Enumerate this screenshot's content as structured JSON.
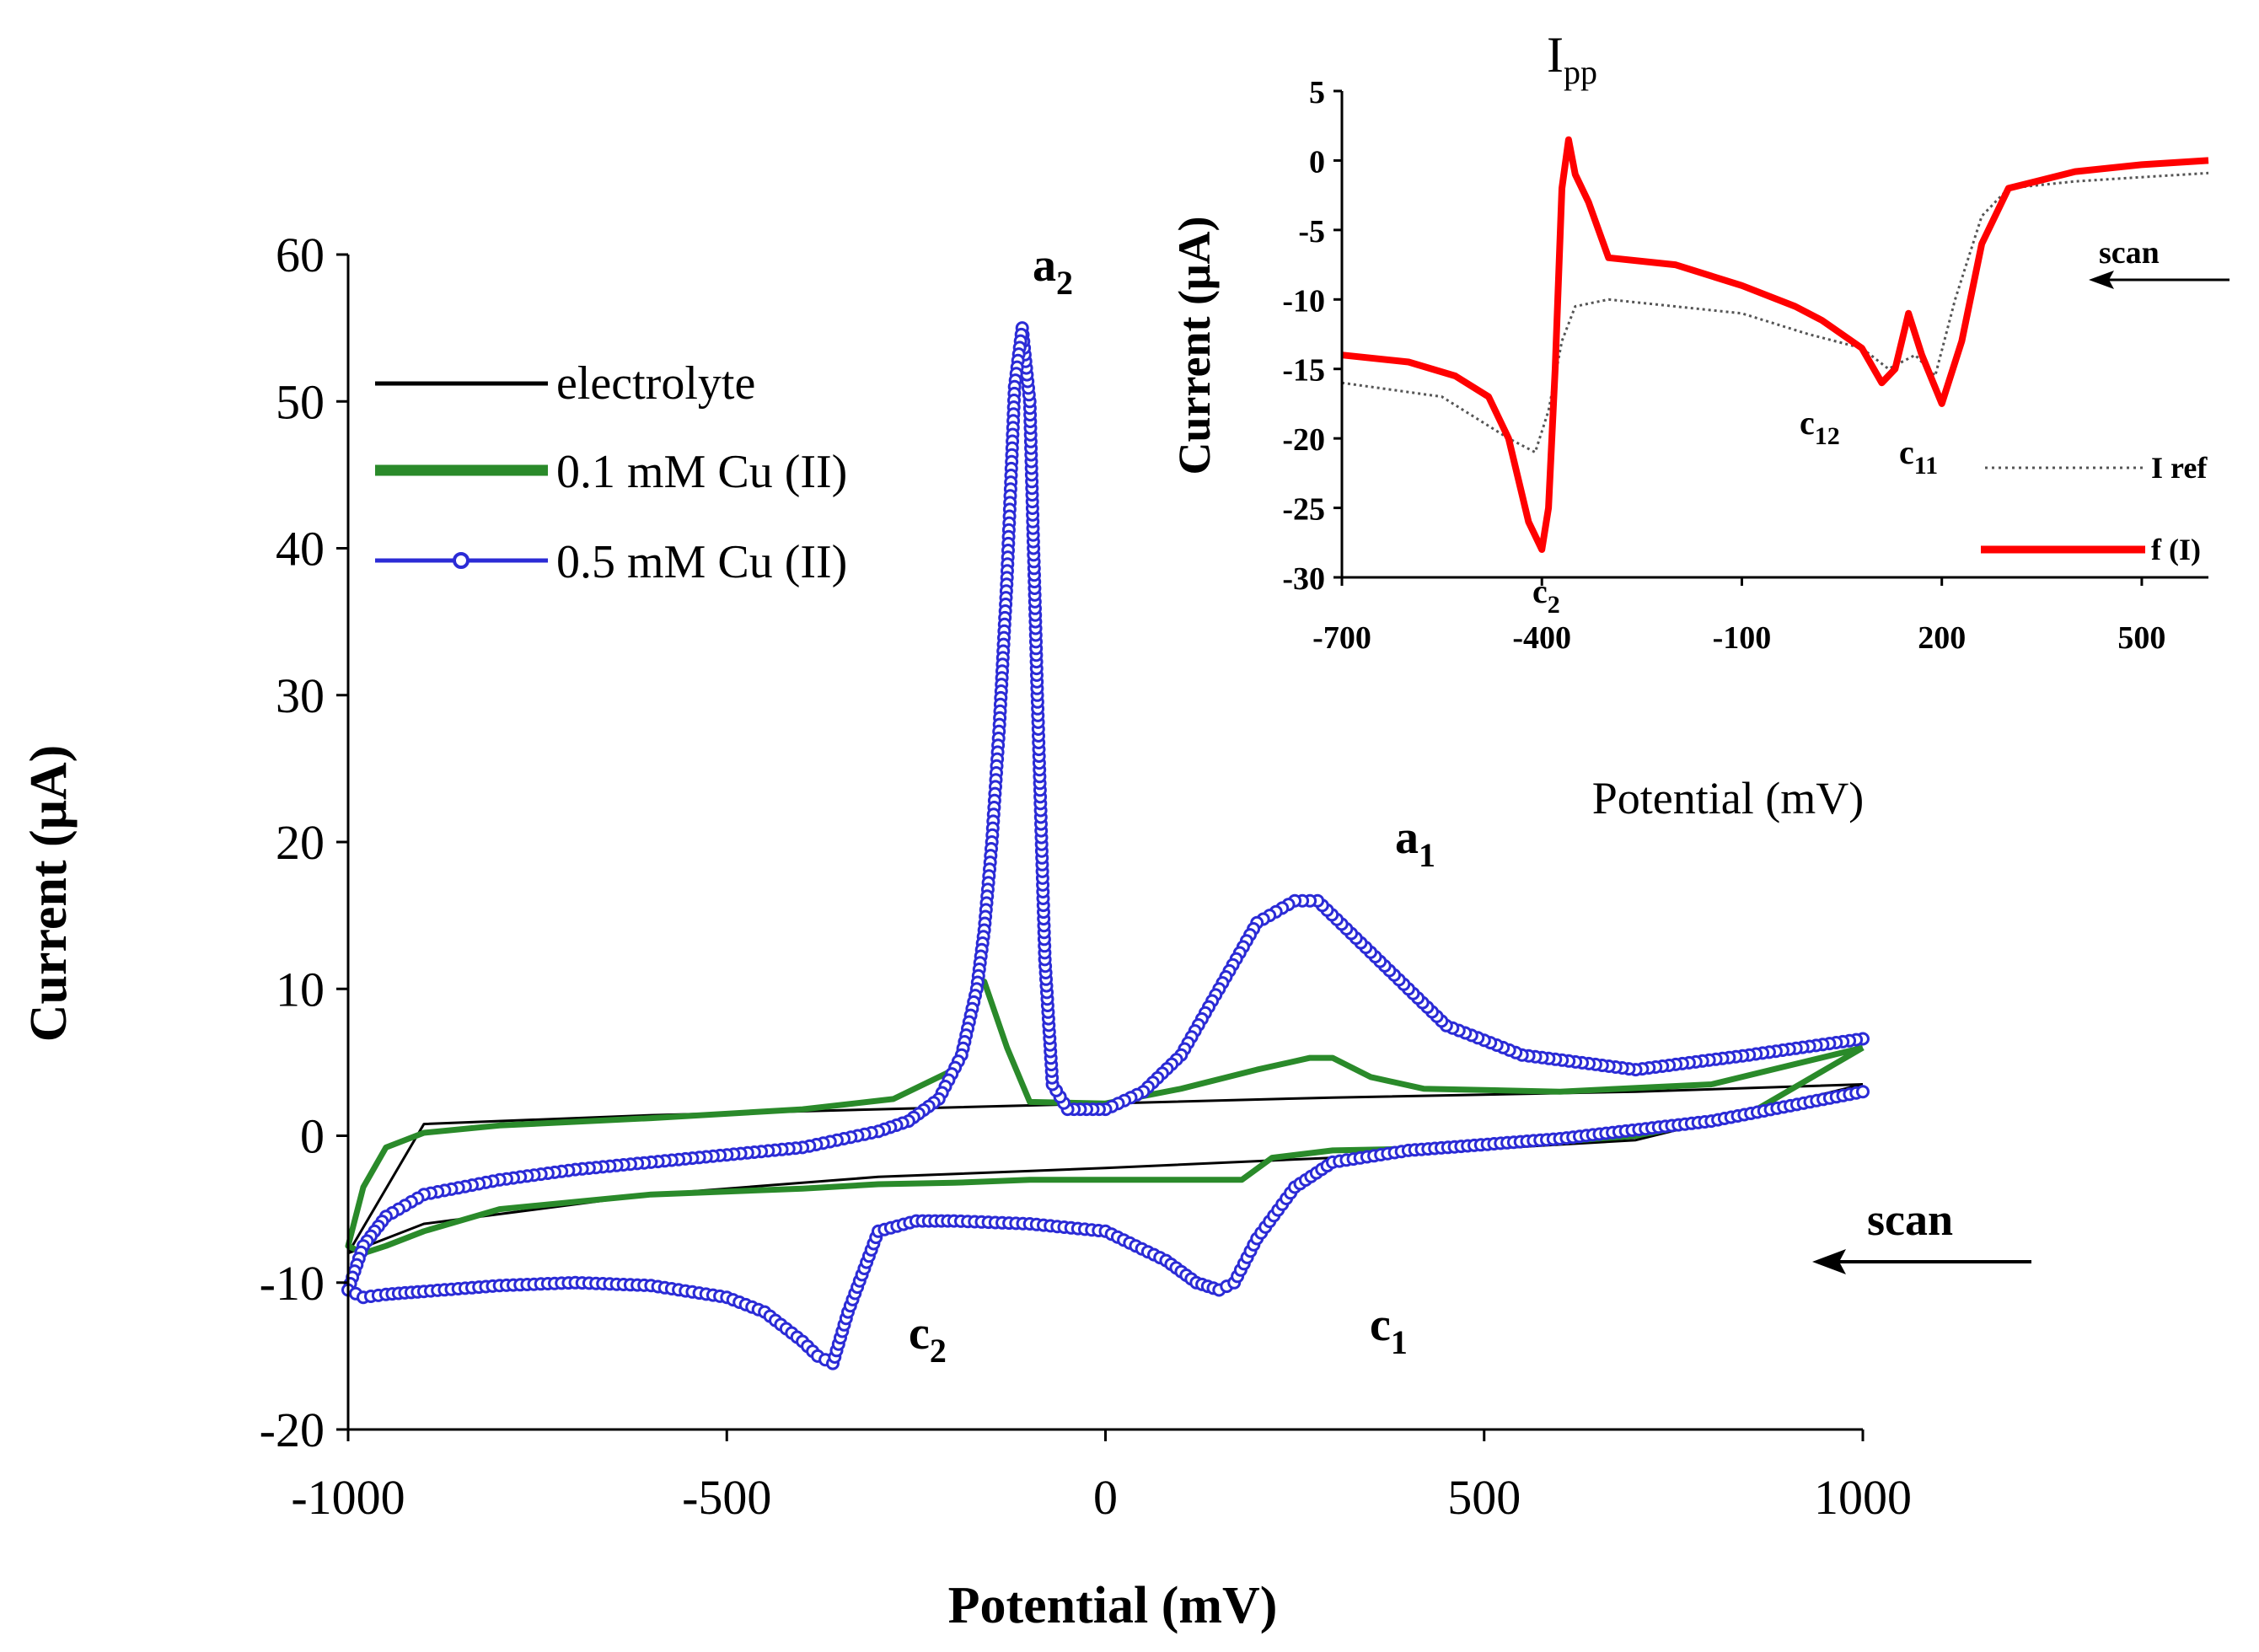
{
  "chart_data": [
    {
      "type": "line",
      "title": "",
      "xlabel": "Potential (mV)",
      "ylabel": "Current (μA)",
      "xlim": [
        -1000,
        1000
      ],
      "ylim": [
        -20,
        60
      ],
      "xticks": [
        -1000,
        -500,
        0,
        500,
        1000
      ],
      "yticks": [
        -20,
        -10,
        0,
        10,
        20,
        30,
        40,
        50,
        60
      ],
      "legend": [
        "electrolyte",
        "0.1 mM Cu (II)",
        "0.5 mM Cu (II)"
      ],
      "annotations": {
        "a1": "a",
        "a1_sub": "1",
        "a2": "a",
        "a2_sub": "2",
        "c1": "c",
        "c1_sub": "1",
        "c2": "c",
        "c2_sub": "2",
        "scan": "scan"
      },
      "series": [
        {
          "name": "electrolyte",
          "color": "#000000",
          "x": [
            1000,
            700,
            300,
            0,
            -300,
            -600,
            -900,
            -1000,
            -900,
            -600,
            -300,
            0,
            300,
            700,
            1000
          ],
          "y": [
            3.5,
            3.0,
            2.6,
            2.2,
            1.8,
            1.4,
            0.8,
            -8.0,
            -6.0,
            -4.0,
            -2.8,
            -2.2,
            -1.5,
            -0.3,
            3.5
          ]
        },
        {
          "name": "0.1 mM Cu (II)",
          "color": "#2a8a2a",
          "x": [
            1000,
            800,
            600,
            420,
            350,
            300,
            270,
            200,
            100,
            0,
            -100,
            -130,
            -160,
            -170,
            -200,
            -280,
            -400,
            -600,
            -800,
            -900,
            -950,
            -980,
            -1000,
            -980,
            -950,
            -900,
            -800,
            -600,
            -400,
            -300,
            -200,
            -100,
            0,
            100,
            180,
            220,
            300,
            500,
            700,
            850,
            1000
          ],
          "y": [
            6.0,
            3.5,
            3.0,
            3.2,
            4.0,
            5.3,
            5.3,
            4.5,
            3.2,
            2.2,
            2.3,
            6.0,
            10.5,
            10.0,
            4.5,
            2.5,
            1.8,
            1.2,
            0.7,
            0.2,
            -0.8,
            -3.5,
            -7.5,
            -8.0,
            -7.5,
            -6.5,
            -5.0,
            -4.0,
            -3.6,
            -3.3,
            -3.2,
            -3.0,
            -3.0,
            -3.0,
            -3.0,
            -1.5,
            -1.0,
            -0.8,
            0.0,
            1.5,
            6.0
          ]
        },
        {
          "name": "0.5 mM Cu (II)",
          "color": "#2b2bd6",
          "x": [
            1000,
            850,
            700,
            550,
            450,
            350,
            280,
            250,
            200,
            150,
            100,
            50,
            0,
            -50,
            -70,
            -80,
            -90,
            -100,
            -110,
            -120,
            -130,
            -140,
            -150,
            -160,
            -170,
            -190,
            -220,
            -260,
            -300,
            -400,
            -500,
            -600,
            -700,
            -800,
            -900,
            -950,
            -980,
            -1000,
            -980,
            -950,
            -900,
            -800,
            -700,
            -600,
            -500,
            -450,
            -400,
            -380,
            -360,
            -340,
            -300,
            -250,
            -200,
            -100,
            0,
            80,
            120,
            150,
            170,
            200,
            250,
            300,
            400,
            600,
            800,
            1000
          ],
          "y": [
            6.6,
            5.5,
            4.5,
            5.5,
            7.5,
            12.5,
            16.0,
            16.0,
            14.5,
            10.0,
            5.5,
            3.0,
            1.8,
            1.8,
            3.5,
            12.0,
            30.0,
            50.0,
            55.0,
            51.0,
            38.0,
            28.0,
            20.0,
            14.0,
            10.0,
            5.5,
            2.5,
            1.0,
            0.3,
            -0.8,
            -1.3,
            -1.8,
            -2.3,
            -3.0,
            -4.0,
            -5.5,
            -7.5,
            -10.5,
            -11.0,
            -10.8,
            -10.6,
            -10.2,
            -10.0,
            -10.2,
            -11.0,
            -12.0,
            -14.0,
            -15.0,
            -15.5,
            -12.0,
            -6.5,
            -5.8,
            -5.8,
            -6.0,
            -6.5,
            -8.5,
            -10.0,
            -10.5,
            -10.0,
            -7.0,
            -3.5,
            -1.8,
            -1.0,
            -0.2,
            1.0,
            3.0
          ]
        }
      ]
    },
    {
      "type": "line",
      "title": "I",
      "title_sub": "pp",
      "xlabel": "Potential (mV)",
      "ylabel": "Current (μA)",
      "xlim": [
        -700,
        600
      ],
      "ylim": [
        -30,
        5
      ],
      "xticks": [
        -700,
        -400,
        -100,
        200,
        500
      ],
      "yticks": [
        -30,
        -25,
        -20,
        -15,
        -10,
        -5,
        0,
        5
      ],
      "legend": [
        "I ref",
        "f (I)"
      ],
      "annotations": {
        "c2": "c",
        "c2_sub": "2",
        "c11": "c",
        "c11_sub": "11",
        "c12": "c",
        "c12_sub": "12",
        "scan": "scan"
      },
      "series": [
        {
          "name": "I ref",
          "color": "#555555",
          "style": "dotted",
          "x": [
            -700,
            -550,
            -450,
            -410,
            -390,
            -370,
            -350,
            -300,
            -100,
            0,
            80,
            120,
            160,
            190,
            220,
            260,
            300,
            400,
            500,
            600
          ],
          "y": [
            -16.0,
            -17.0,
            -20.0,
            -21.0,
            -18.0,
            -13.0,
            -10.5,
            -10.0,
            -11.0,
            -12.5,
            -13.5,
            -15.0,
            -14.0,
            -15.5,
            -10.0,
            -4.0,
            -2.0,
            -1.5,
            -1.2,
            -0.9
          ]
        },
        {
          "name": "f (I)",
          "color": "#ff0000",
          "x": [
            -700,
            -600,
            -530,
            -480,
            -450,
            -420,
            -400,
            -390,
            -380,
            -370,
            -360,
            -350,
            -330,
            -300,
            -200,
            -100,
            -20,
            20,
            80,
            110,
            130,
            150,
            170,
            200,
            230,
            260,
            300,
            400,
            500,
            600
          ],
          "y": [
            -14.0,
            -14.5,
            -15.5,
            -17.0,
            -20.0,
            -26.0,
            -28.0,
            -25.0,
            -15.0,
            -2.0,
            1.5,
            -1.0,
            -3.0,
            -7.0,
            -7.5,
            -9.0,
            -10.5,
            -11.5,
            -13.5,
            -16.0,
            -15.0,
            -11.0,
            -14.0,
            -17.5,
            -13.0,
            -6.0,
            -2.0,
            -0.8,
            -0.3,
            0.0
          ]
        }
      ]
    }
  ]
}
